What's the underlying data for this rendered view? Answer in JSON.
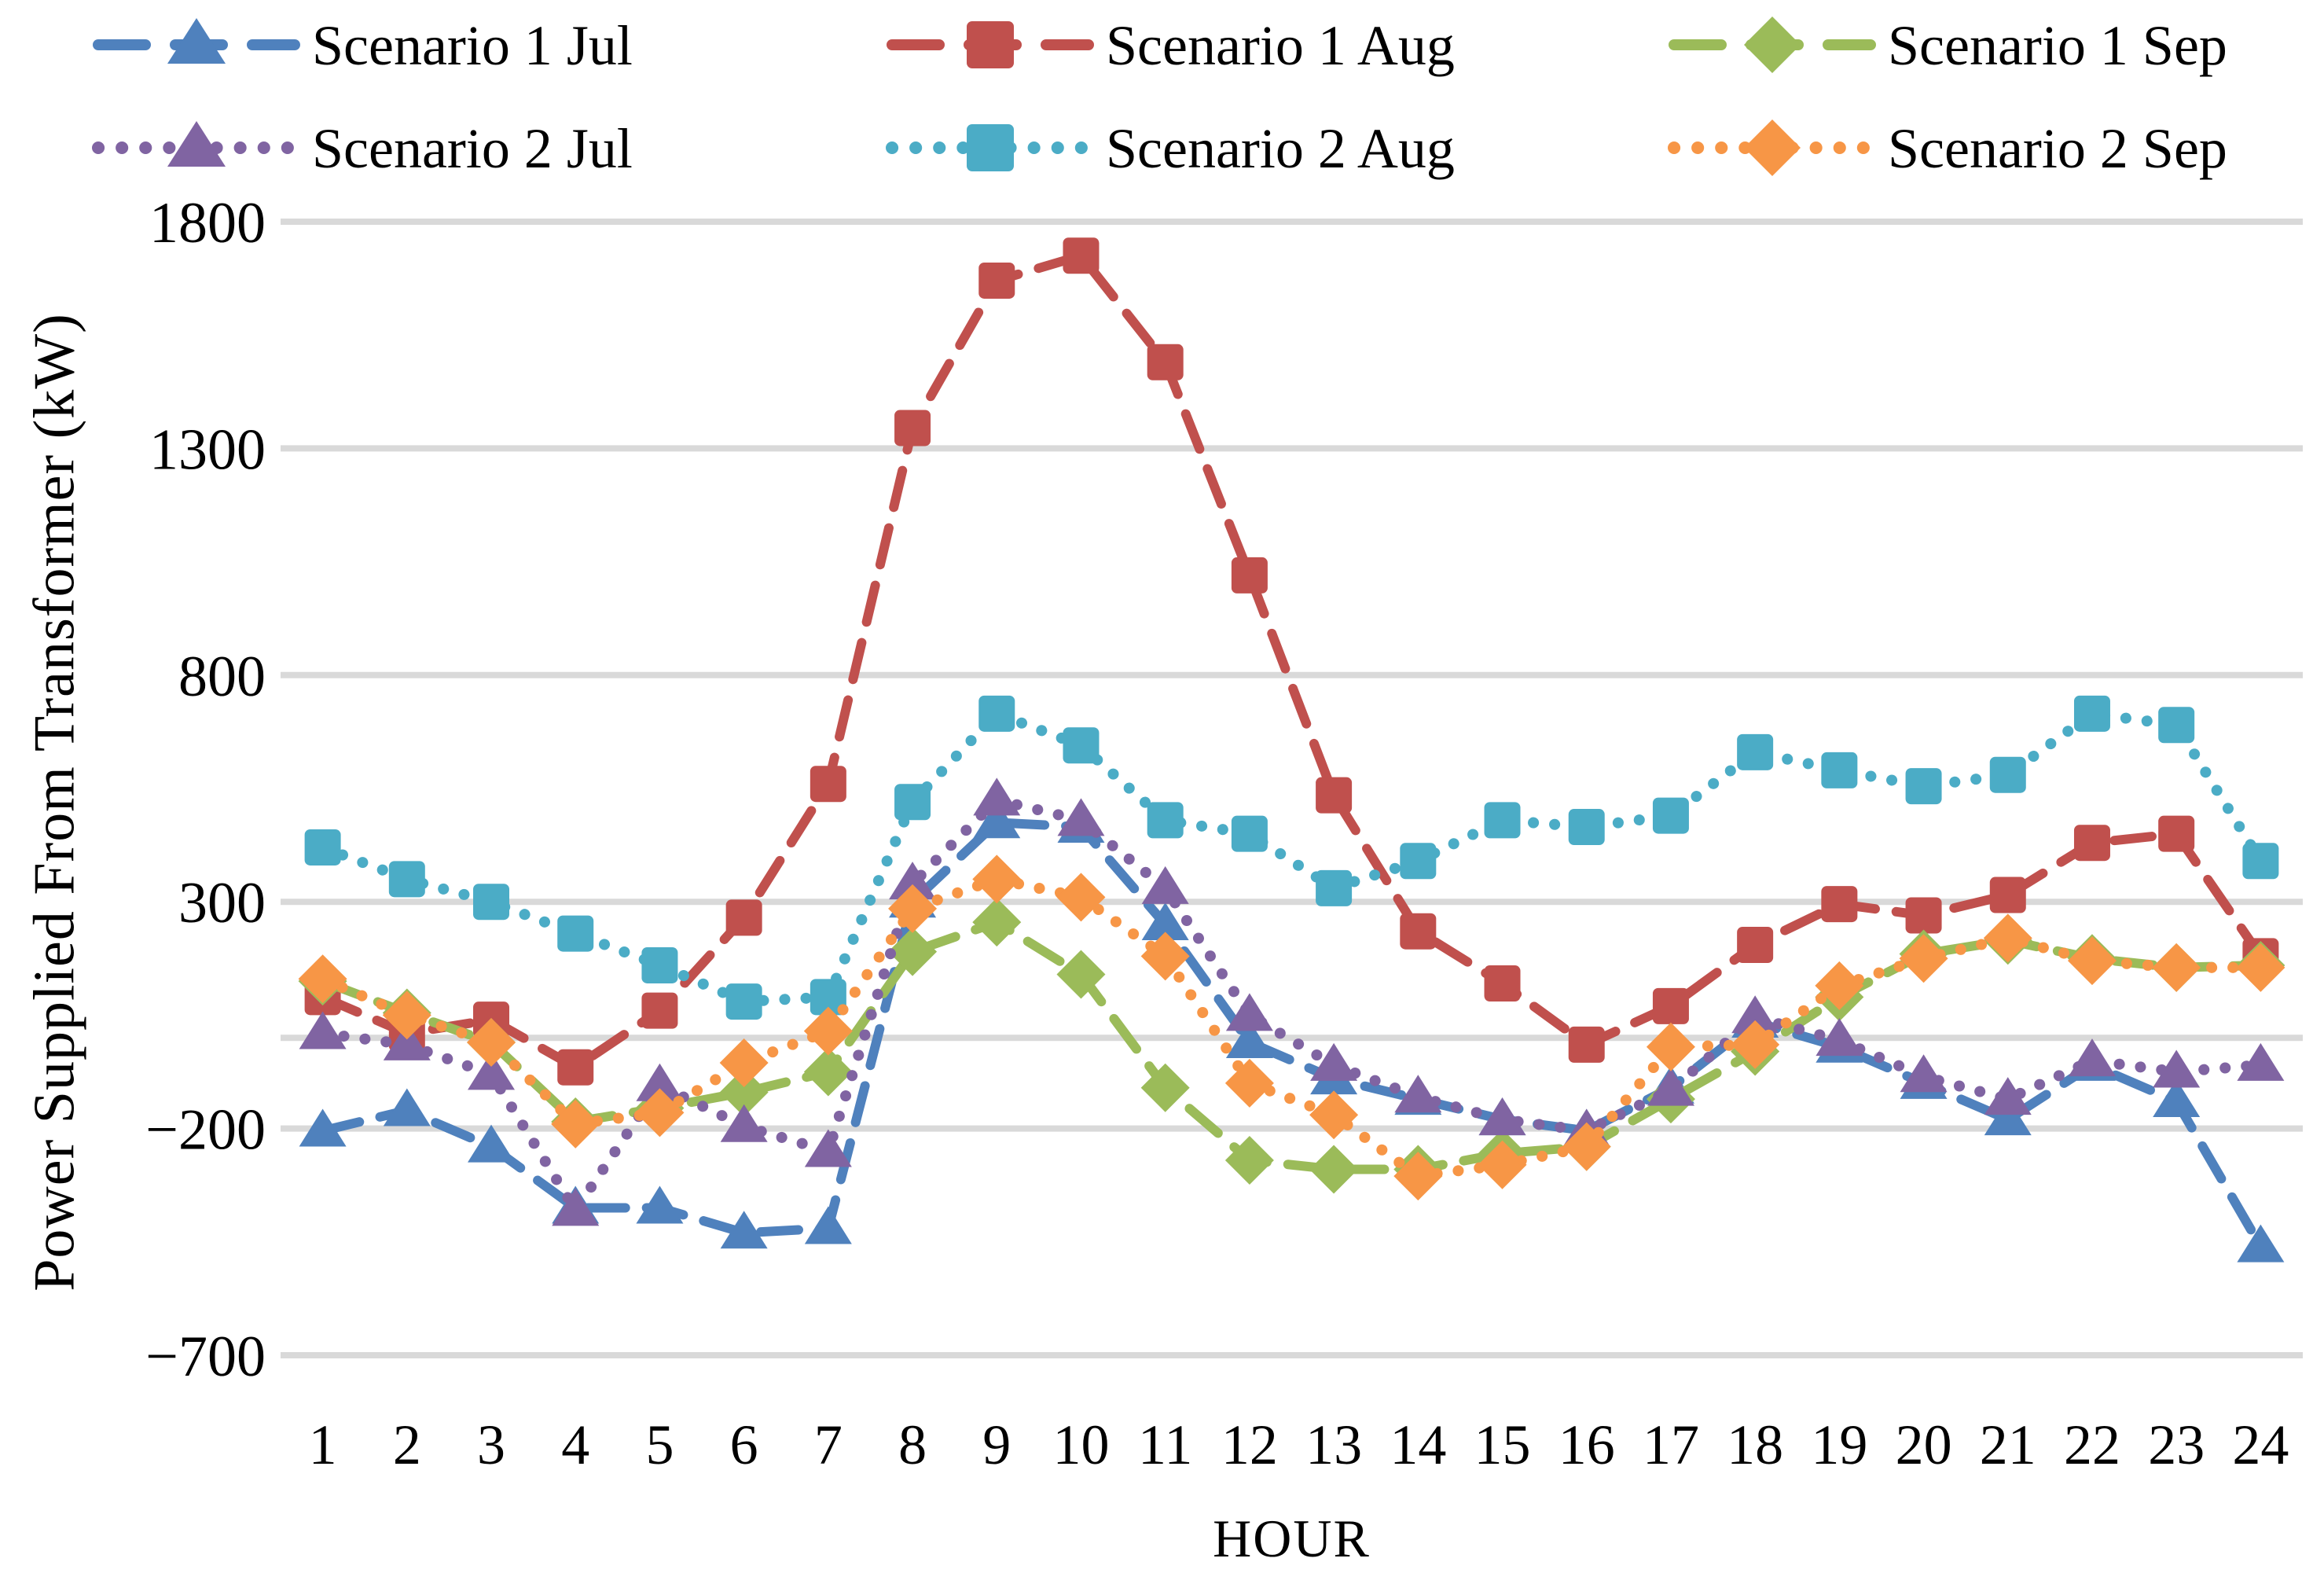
{
  "chart_data": {
    "type": "line",
    "title": "",
    "xlabel": "HOUR",
    "ylabel": "Power Supplied From Transformer (kW)",
    "x": [
      1,
      2,
      3,
      4,
      5,
      6,
      7,
      8,
      9,
      10,
      11,
      12,
      13,
      14,
      15,
      16,
      17,
      18,
      19,
      20,
      21,
      22,
      23,
      24
    ],
    "yticks": [
      1800,
      1300,
      800,
      300,
      -200,
      -700
    ],
    "ytick_labels": [
      "1800",
      "1300",
      "800",
      "300",
      "−200",
      "−700"
    ],
    "ylim": [
      -700,
      1800
    ],
    "grid": true,
    "zero_axis_line": true,
    "legend_position": "top",
    "colors": {
      "gridline": "#d9d9d9",
      "zero_line": "#d9d9d9",
      "text": "#000000"
    },
    "series": [
      {
        "name": "Scenario 1 Jul",
        "color": "#4f81bd",
        "marker": "triangle",
        "line_style": "dashed",
        "values": [
          -205,
          -160,
          -240,
          -375,
          -375,
          -430,
          -420,
          300,
          475,
          465,
          250,
          -10,
          -90,
          -135,
          -180,
          -205,
          -110,
          35,
          -20,
          -100,
          -180,
          -60,
          -140,
          -460
        ]
      },
      {
        "name": "Scenario 1 Aug",
        "color": "#c0504d",
        "marker": "square",
        "line_style": "dashed",
        "values": [
          90,
          10,
          40,
          -65,
          60,
          265,
          560,
          1345,
          1670,
          1725,
          1490,
          1020,
          535,
          235,
          120,
          -15,
          70,
          205,
          295,
          270,
          315,
          430,
          450,
          180
        ]
      },
      {
        "name": "Scenario 1 Sep",
        "color": "#9bbb59",
        "marker": "diamond",
        "line_style": "dashed",
        "values": [
          125,
          55,
          -10,
          -185,
          -155,
          -120,
          -75,
          190,
          255,
          140,
          -110,
          -270,
          -290,
          -290,
          -255,
          -240,
          -135,
          -30,
          90,
          185,
          215,
          175,
          155,
          160
        ]
      },
      {
        "name": "Scenario 2 Jul",
        "color": "#8064a2",
        "marker": "triangle",
        "line_style": "dotted",
        "values": [
          10,
          -15,
          -80,
          -380,
          -105,
          -195,
          -250,
          340,
          525,
          480,
          330,
          50,
          -60,
          -130,
          -180,
          -205,
          -115,
          45,
          -5,
          -85,
          -135,
          -50,
          -75,
          -60
        ]
      },
      {
        "name": "Scenario 2 Aug",
        "color": "#4bacc6",
        "marker": "square",
        "line_style": "dotted",
        "values": [
          420,
          350,
          300,
          230,
          160,
          80,
          90,
          520,
          715,
          645,
          480,
          450,
          330,
          390,
          480,
          465,
          490,
          630,
          590,
          555,
          580,
          715,
          690,
          390
        ]
      },
      {
        "name": "Scenario 2 Sep",
        "color": "#f79646",
        "marker": "diamond",
        "line_style": "dotted",
        "values": [
          130,
          50,
          -10,
          -190,
          -165,
          -55,
          15,
          285,
          350,
          310,
          180,
          -100,
          -170,
          -305,
          -280,
          -240,
          -20,
          -15,
          115,
          175,
          220,
          170,
          155,
          155
        ]
      }
    ]
  }
}
